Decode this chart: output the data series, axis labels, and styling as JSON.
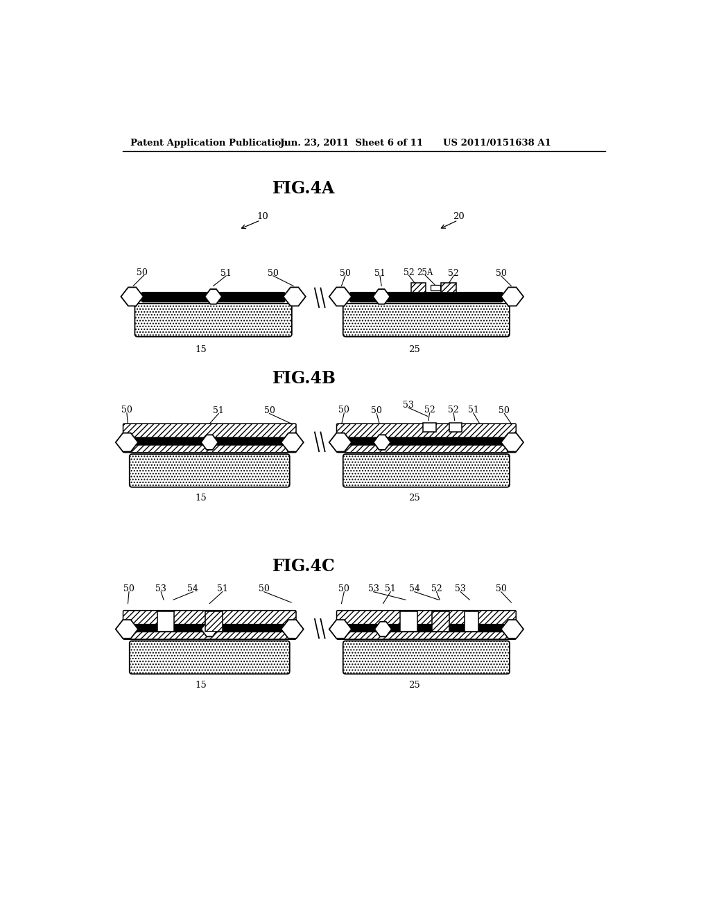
{
  "header_left": "Patent Application Publication",
  "header_mid": "Jun. 23, 2011  Sheet 6 of 11",
  "header_right": "US 2011/0151638 A1",
  "fig4a_title": "FIG.4A",
  "fig4b_title": "FIG.4B",
  "fig4c_title": "FIG.4C",
  "bg_color": "#ffffff",
  "line_color": "#000000"
}
